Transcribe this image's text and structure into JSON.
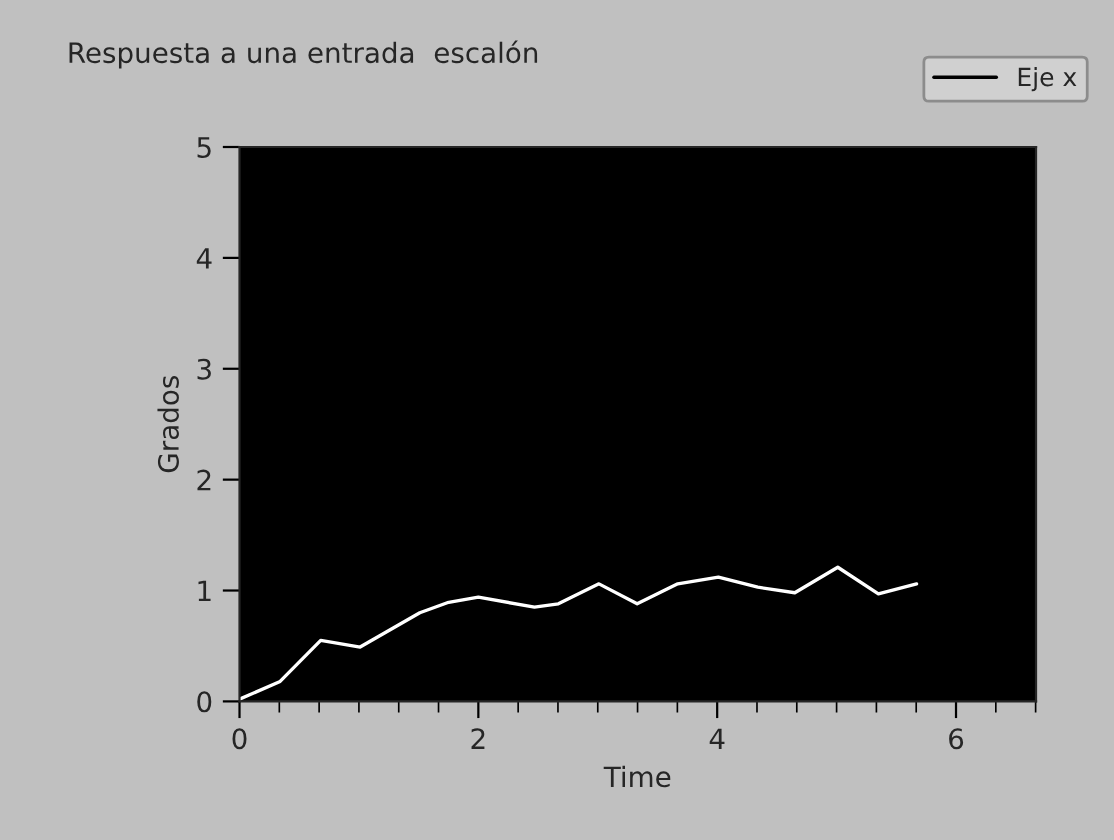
{
  "chart_data": {
    "type": "line",
    "title": "Respuesta a una entrada  escalón",
    "xlabel": "Time",
    "ylabel": "Grados",
    "series": [
      {
        "name": "Eje x",
        "color": "#ffffff",
        "x": [
          0,
          0.34,
          0.68,
          1.01,
          1.51,
          1.74,
          2.0,
          2.47,
          2.67,
          3.01,
          3.33,
          3.67,
          4.01,
          4.34,
          4.65,
          5.01,
          5.35,
          5.67
        ],
        "values": [
          0.02,
          0.18,
          0.55,
          0.49,
          0.8,
          0.89,
          0.94,
          0.85,
          0.88,
          1.06,
          0.88,
          1.06,
          1.12,
          1.03,
          0.98,
          1.21,
          0.97,
          1.06
        ]
      }
    ],
    "xlim": [
      0,
      6.67
    ],
    "ylim": [
      0,
      5
    ],
    "xticks": [
      0,
      2,
      4,
      6
    ],
    "yticks": [
      0,
      1,
      2,
      3,
      4,
      5
    ],
    "grid": false,
    "legend": "top right",
    "marker": "none",
    "line_style": "solid"
  }
}
